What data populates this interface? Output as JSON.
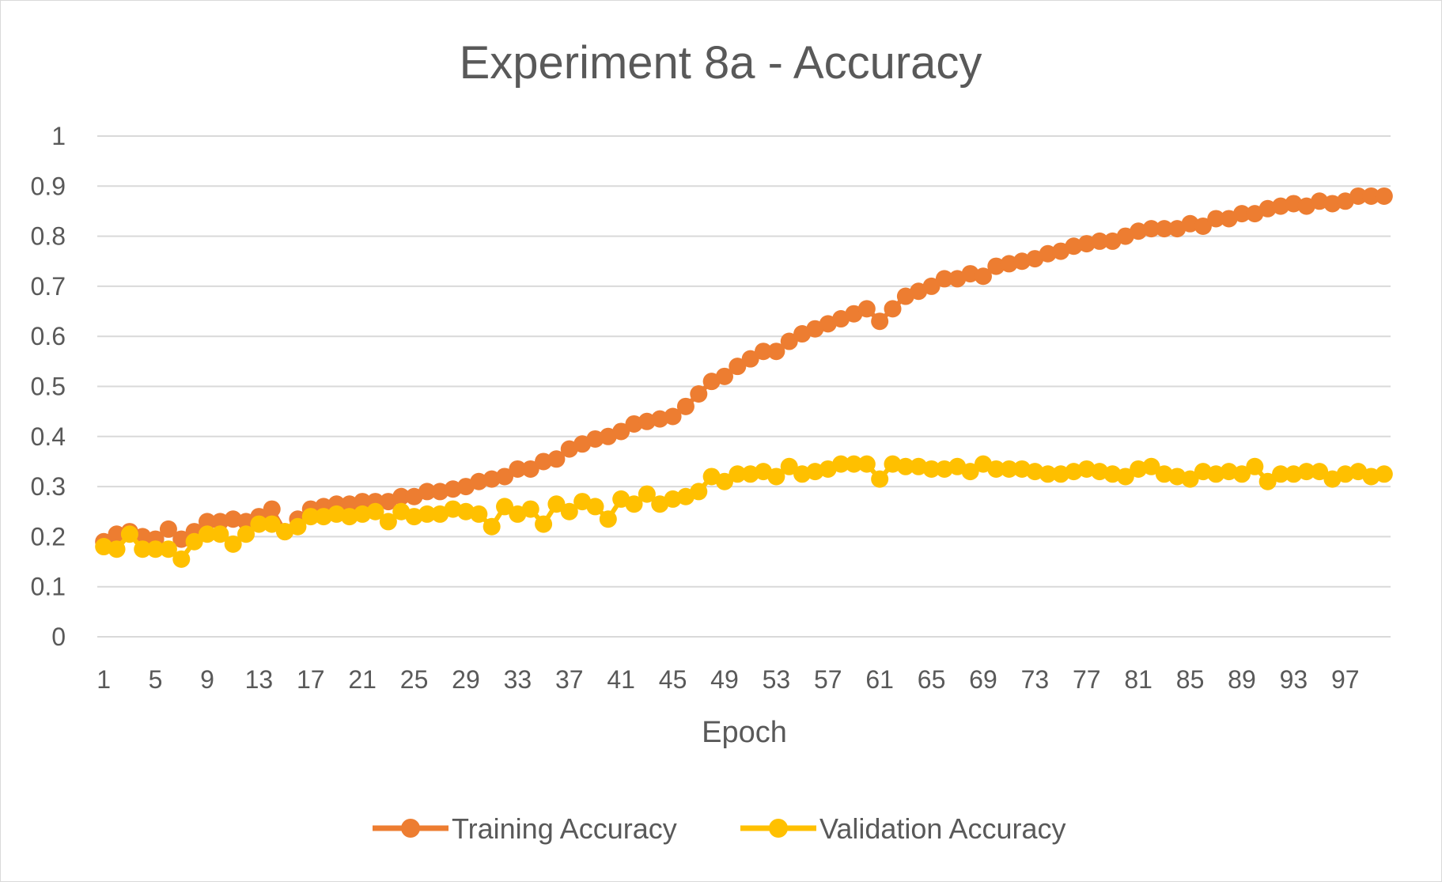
{
  "chart_data": {
    "type": "line",
    "title": "Experiment 8a - Accuracy",
    "xlabel": "Epoch",
    "ylabel": "",
    "ylim": [
      0,
      1
    ],
    "yticks": [
      "0",
      "0.1",
      "0.2",
      "0.3",
      "0.4",
      "0.5",
      "0.6",
      "0.7",
      "0.8",
      "0.9",
      "1"
    ],
    "xticks": [
      "1",
      "5",
      "9",
      "13",
      "17",
      "21",
      "25",
      "29",
      "33",
      "37",
      "41",
      "45",
      "49",
      "53",
      "57",
      "61",
      "65",
      "69",
      "73",
      "77",
      "81",
      "85",
      "89",
      "93",
      "97"
    ],
    "grid": true,
    "legend": "bottom",
    "x": [
      1,
      2,
      3,
      4,
      5,
      6,
      7,
      8,
      9,
      10,
      11,
      12,
      13,
      14,
      15,
      16,
      17,
      18,
      19,
      20,
      21,
      22,
      23,
      24,
      25,
      26,
      27,
      28,
      29,
      30,
      31,
      32,
      33,
      34,
      35,
      36,
      37,
      38,
      39,
      40,
      41,
      42,
      43,
      44,
      45,
      46,
      47,
      48,
      49,
      50,
      51,
      52,
      53,
      54,
      55,
      56,
      57,
      58,
      59,
      60,
      61,
      62,
      63,
      64,
      65,
      66,
      67,
      68,
      69,
      70,
      71,
      72,
      73,
      74,
      75,
      76,
      77,
      78,
      79,
      80,
      81,
      82,
      83,
      84,
      85,
      86,
      87,
      88,
      89,
      90,
      91,
      92,
      93,
      94,
      95,
      96,
      97,
      98,
      99,
      100
    ],
    "series": [
      {
        "name": "Training Accuracy",
        "color": "#ED7D31",
        "values": [
          0.19,
          0.205,
          0.21,
          0.2,
          0.195,
          0.215,
          0.195,
          0.21,
          0.23,
          0.23,
          0.235,
          0.23,
          0.24,
          0.255,
          0.21,
          0.235,
          0.255,
          0.26,
          0.265,
          0.265,
          0.27,
          0.27,
          0.27,
          0.28,
          0.28,
          0.29,
          0.29,
          0.295,
          0.3,
          0.31,
          0.315,
          0.32,
          0.335,
          0.335,
          0.35,
          0.355,
          0.375,
          0.385,
          0.395,
          0.4,
          0.41,
          0.425,
          0.43,
          0.435,
          0.44,
          0.46,
          0.485,
          0.51,
          0.52,
          0.54,
          0.555,
          0.57,
          0.57,
          0.59,
          0.605,
          0.615,
          0.625,
          0.635,
          0.645,
          0.655,
          0.63,
          0.655,
          0.68,
          0.69,
          0.7,
          0.715,
          0.715,
          0.725,
          0.72,
          0.74,
          0.745,
          0.75,
          0.755,
          0.765,
          0.77,
          0.78,
          0.785,
          0.79,
          0.79,
          0.8,
          0.81,
          0.815,
          0.815,
          0.815,
          0.825,
          0.82,
          0.835,
          0.835,
          0.845,
          0.845,
          0.855,
          0.86,
          0.865,
          0.86,
          0.87,
          0.865,
          0.87,
          0.88,
          0.88,
          0.88
        ]
      },
      {
        "name": "Validation Accuracy",
        "color": "#FFC000",
        "values": [
          0.18,
          0.175,
          0.205,
          0.175,
          0.175,
          0.175,
          0.155,
          0.19,
          0.205,
          0.205,
          0.185,
          0.205,
          0.225,
          0.225,
          0.21,
          0.22,
          0.24,
          0.24,
          0.245,
          0.24,
          0.245,
          0.25,
          0.23,
          0.25,
          0.24,
          0.245,
          0.245,
          0.255,
          0.25,
          0.245,
          0.22,
          0.26,
          0.245,
          0.255,
          0.225,
          0.265,
          0.25,
          0.27,
          0.26,
          0.235,
          0.275,
          0.265,
          0.285,
          0.265,
          0.275,
          0.28,
          0.29,
          0.32,
          0.31,
          0.325,
          0.325,
          0.33,
          0.32,
          0.34,
          0.325,
          0.33,
          0.335,
          0.345,
          0.345,
          0.345,
          0.315,
          0.345,
          0.34,
          0.34,
          0.335,
          0.335,
          0.34,
          0.33,
          0.345,
          0.335,
          0.335,
          0.335,
          0.33,
          0.325,
          0.325,
          0.33,
          0.335,
          0.33,
          0.325,
          0.32,
          0.335,
          0.34,
          0.325,
          0.32,
          0.315,
          0.33,
          0.325,
          0.33,
          0.325,
          0.34,
          0.31,
          0.325,
          0.325,
          0.33,
          0.33,
          0.315,
          0.325,
          0.33,
          0.32,
          0.325
        ]
      }
    ]
  }
}
